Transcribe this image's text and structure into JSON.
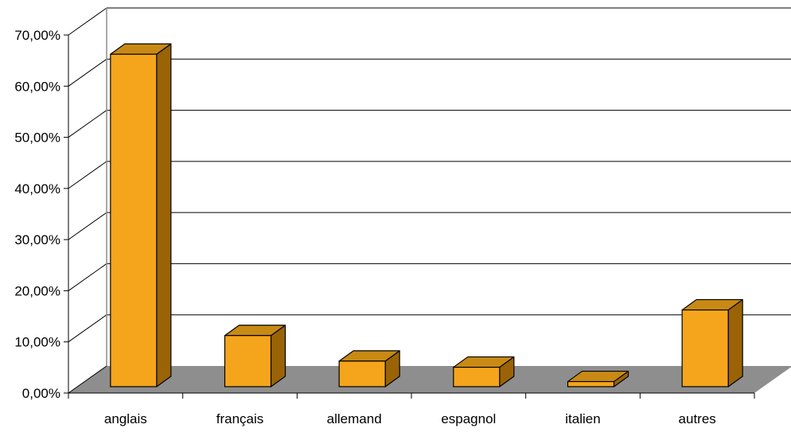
{
  "colors": {
    "bar_front": "#F5A51C",
    "bar_top": "#C88A14",
    "bar_side": "#9A6306",
    "floor": "#8E8E8E",
    "gridline": "#000000"
  },
  "chart_data": {
    "type": "bar",
    "three_d": true,
    "categories": [
      "anglais",
      "français",
      "allemand",
      "espagnol",
      "italien",
      "autres"
    ],
    "values": [
      65.0,
      10.0,
      5.0,
      3.8,
      1.0,
      15.0
    ],
    "ylim": [
      0,
      70
    ],
    "y_ticks": [
      "0,00%",
      "10,00%",
      "20,00%",
      "30,00%",
      "40,00%",
      "50,00%",
      "60,00%",
      "70,00%"
    ],
    "title": "",
    "xlabel": "",
    "ylabel": "",
    "grid": true,
    "legend": "none"
  }
}
